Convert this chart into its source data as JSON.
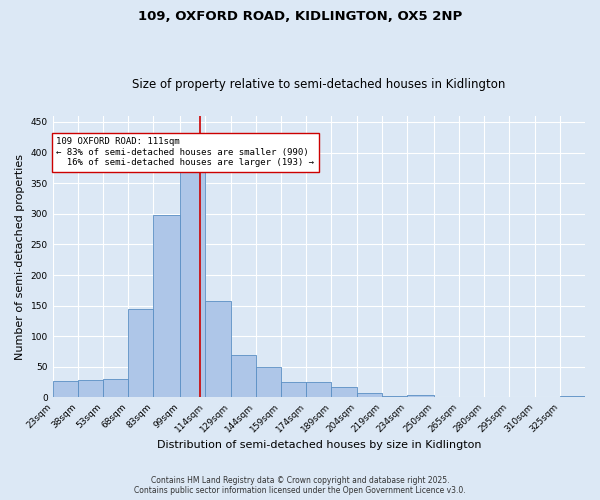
{
  "title_line1": "109, OXFORD ROAD, KIDLINGTON, OX5 2NP",
  "title_line2": "Size of property relative to semi-detached houses in Kidlington",
  "xlabel": "Distribution of semi-detached houses by size in Kidlington",
  "ylabel": "Number of semi-detached properties",
  "bin_labels": [
    "23sqm",
    "38sqm",
    "53sqm",
    "68sqm",
    "83sqm",
    "99sqm",
    "114sqm",
    "129sqm",
    "144sqm",
    "159sqm",
    "174sqm",
    "189sqm",
    "204sqm",
    "219sqm",
    "234sqm",
    "250sqm",
    "265sqm",
    "280sqm",
    "295sqm",
    "310sqm",
    "325sqm"
  ],
  "bar_heights": [
    27,
    29,
    30,
    145,
    298,
    370,
    158,
    70,
    49,
    25,
    25,
    17,
    7,
    2,
    4,
    0,
    0,
    0,
    0,
    0,
    3
  ],
  "bin_edges": [
    23,
    38,
    53,
    68,
    83,
    99,
    114,
    129,
    144,
    159,
    174,
    189,
    204,
    219,
    234,
    250,
    265,
    280,
    295,
    310,
    325,
    340
  ],
  "bar_color": "#aec6e8",
  "bar_edge_color": "#5a8fc4",
  "vline_x": 111,
  "vline_color": "#cc0000",
  "annotation_line1": "109 OXFORD ROAD: 111sqm",
  "annotation_line2": "← 83% of semi-detached houses are smaller (990)",
  "annotation_line3": "  16% of semi-detached houses are larger (193) →",
  "annotation_box_color": "#ffffff",
  "annotation_box_edge": "#cc0000",
  "ylim": [
    0,
    460
  ],
  "yticks": [
    0,
    50,
    100,
    150,
    200,
    250,
    300,
    350,
    400,
    450
  ],
  "background_color": "#dce8f5",
  "grid_color": "#ffffff",
  "footer_line1": "Contains HM Land Registry data © Crown copyright and database right 2025.",
  "footer_line2": "Contains public sector information licensed under the Open Government Licence v3.0.",
  "title_fontsize": 9.5,
  "subtitle_fontsize": 8.5,
  "axis_label_fontsize": 8,
  "tick_fontsize": 6.5,
  "annotation_fontsize": 6.5,
  "footer_fontsize": 5.5
}
